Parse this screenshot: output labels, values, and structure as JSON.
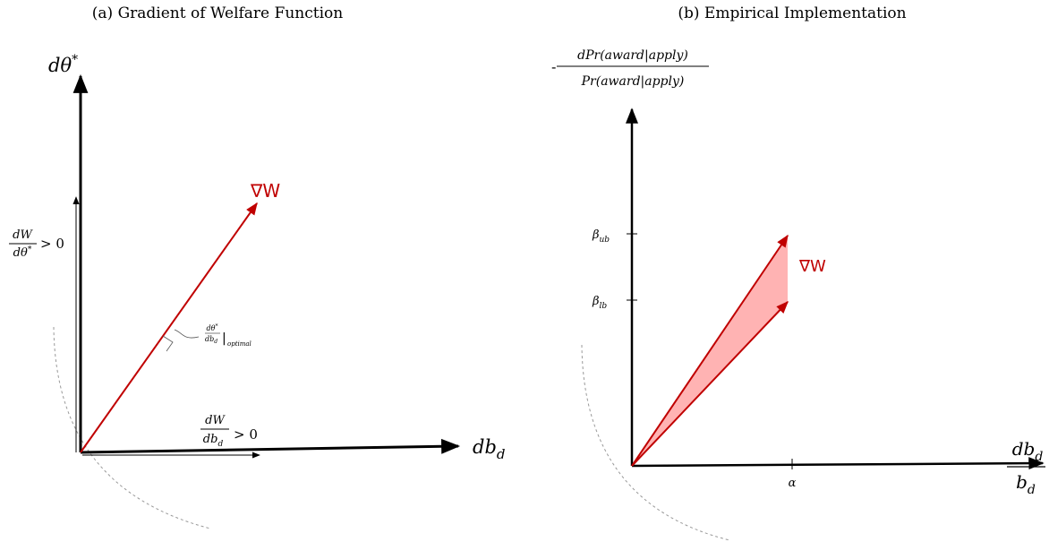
{
  "panel_a": {
    "title": "(a) Gradient of Welfare Function",
    "y_axis_label": {
      "main": "dθ",
      "sup": "*"
    },
    "x_axis_label": {
      "main": "db",
      "sub": "d"
    },
    "gradient_label": "∇W",
    "y_component_label": {
      "numerator": "dW",
      "denominator": {
        "main": "dθ",
        "sup": "*"
      },
      "relation": "> 0"
    },
    "x_component_label": {
      "numerator": "dW",
      "denominator": {
        "main": "db",
        "sub": "d"
      },
      "relation": "> 0"
    },
    "optimal_label": {
      "numerator": {
        "main": "dθ",
        "sup": "*"
      },
      "denominator": {
        "main": "db",
        "sub": "d"
      },
      "bar": "|",
      "condition": "optimal"
    }
  },
  "panel_b": {
    "title": "(b) Empirical Implementation",
    "y_axis_label": {
      "prefix": "-",
      "numerator": "dPr(award|apply)",
      "denominator": "Pr(award|apply)"
    },
    "x_axis_label": {
      "numerator": {
        "main": "db",
        "sub": "d"
      },
      "denominator": {
        "main": "b",
        "sub": "d"
      }
    },
    "gradient_label": "∇W",
    "y_ticks": [
      {
        "main": "β",
        "sub": "ub"
      },
      {
        "main": "β",
        "sub": "lb"
      }
    ],
    "x_tick": "α"
  }
}
